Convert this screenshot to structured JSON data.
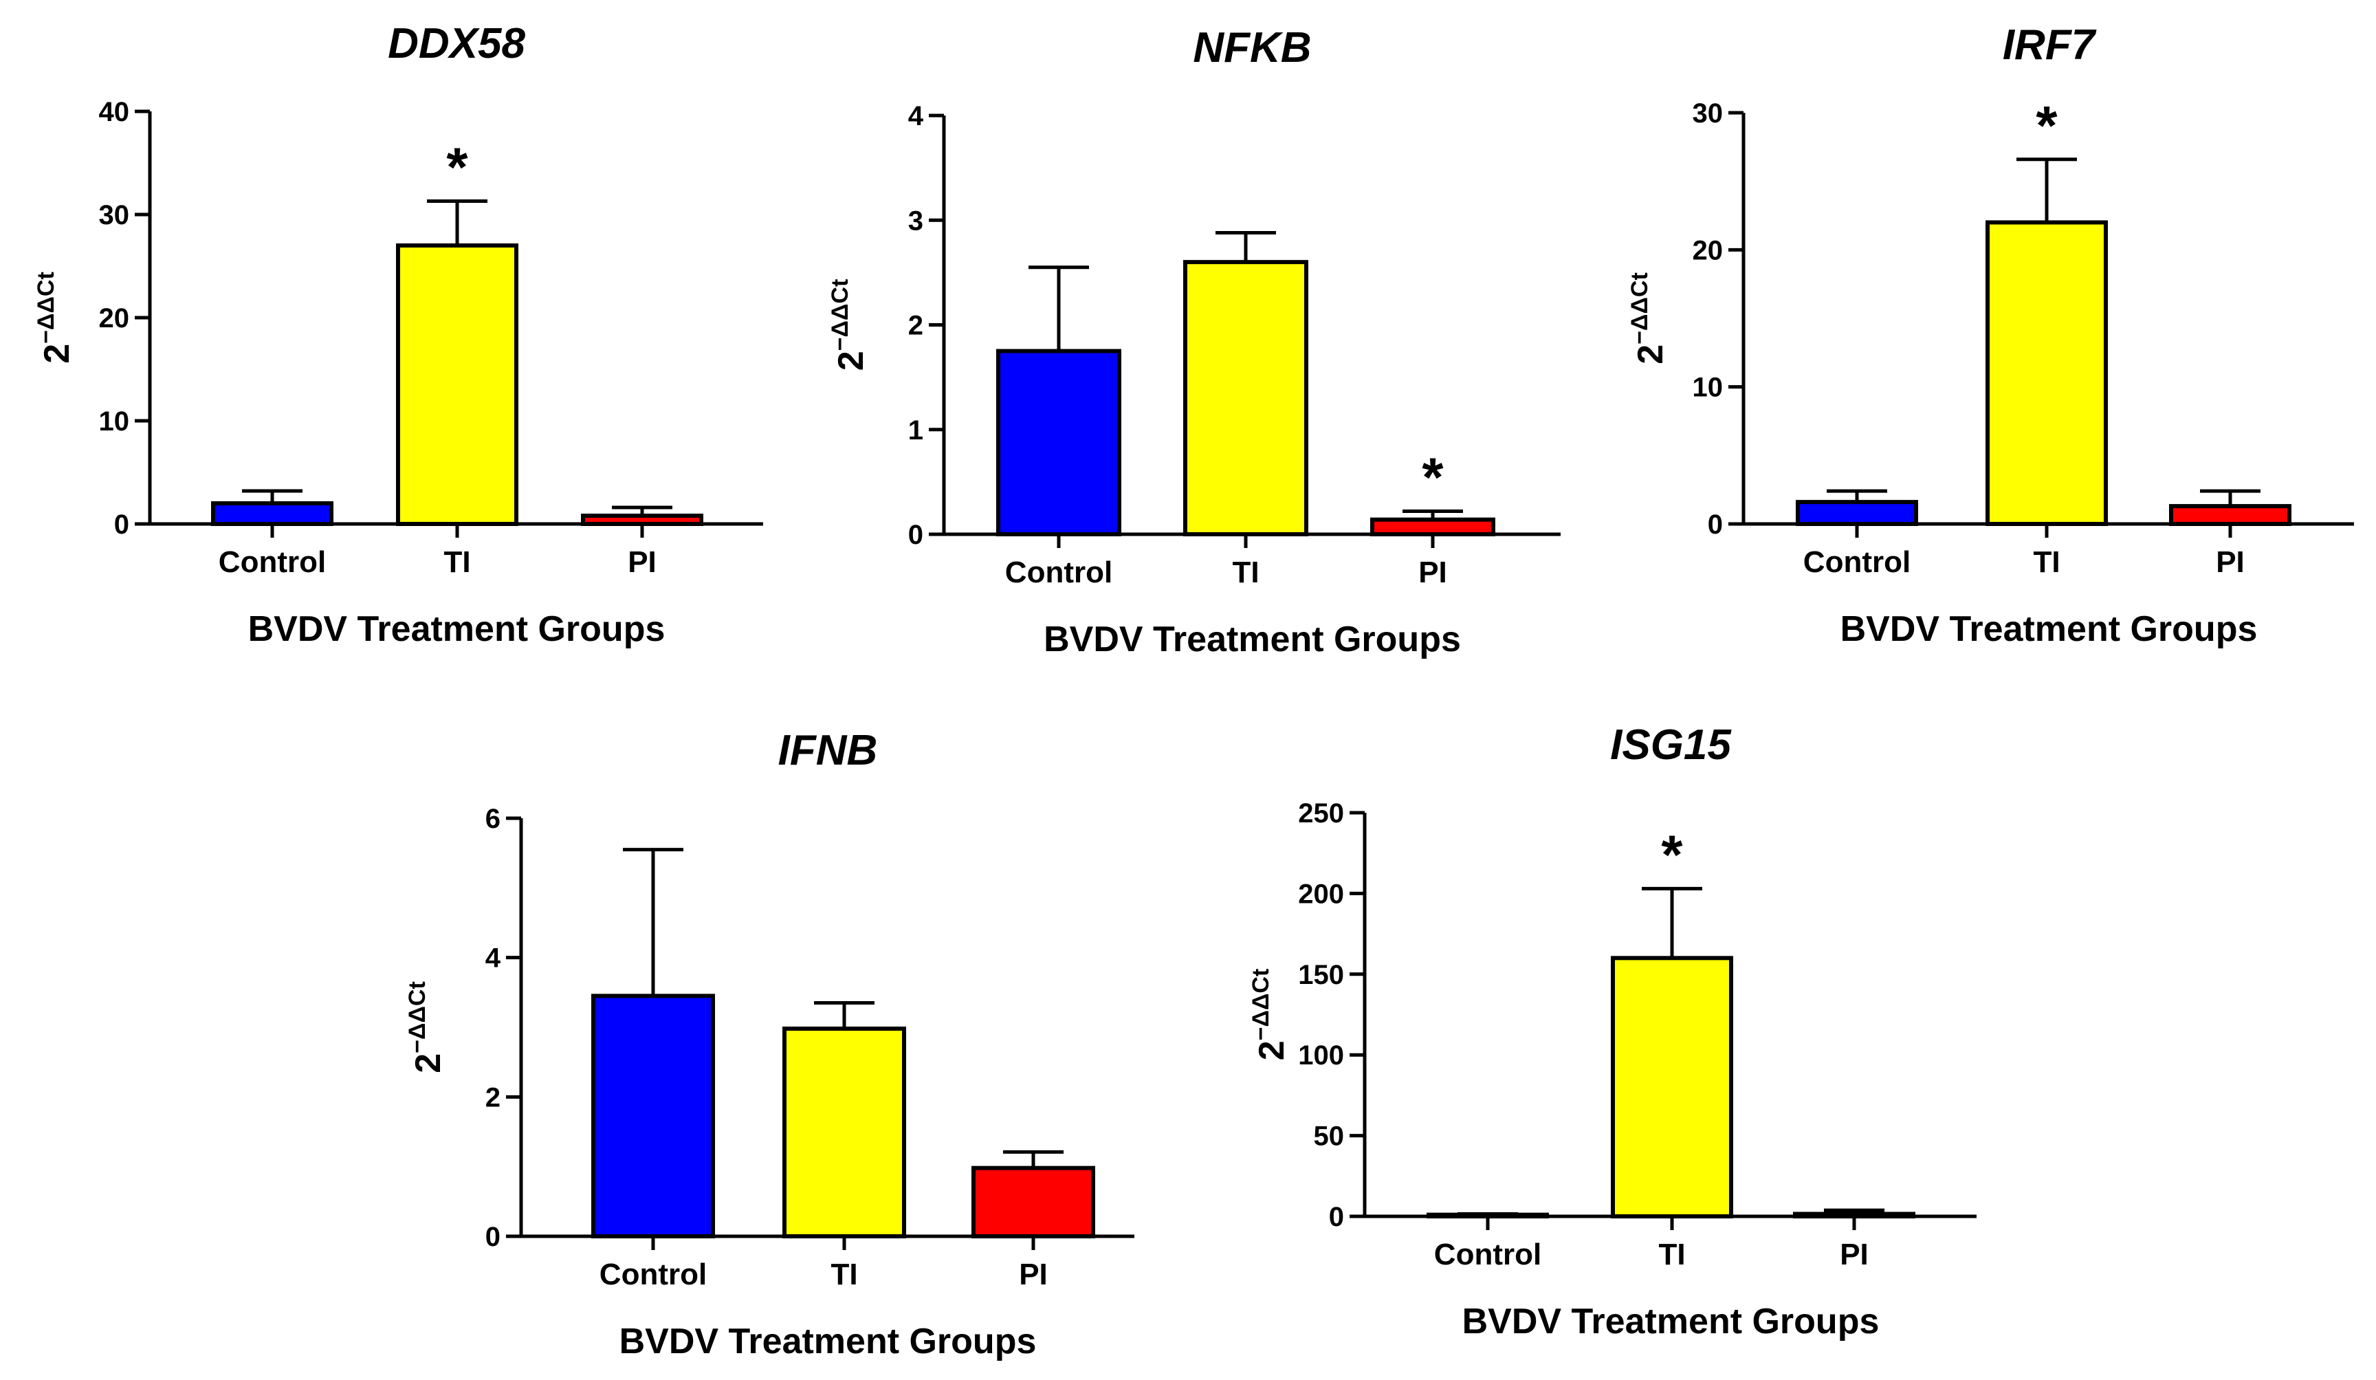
{
  "figure": {
    "colors": {
      "Control": "#0000ff",
      "TI": "#ffff00",
      "PI": "#ff0000",
      "axis": "#000000"
    }
  },
  "chart_data": [
    {
      "type": "bar",
      "title": "DDX58",
      "xlabel": "BVDV Treatment Groups",
      "ylabel_base": "2",
      "ylabel_sup": "−ΔΔCt",
      "categories": [
        "Control",
        "TI",
        "PI"
      ],
      "values": [
        2,
        27,
        0.8
      ],
      "errors": [
        1.2,
        4.3,
        0.8
      ],
      "significance": [
        "",
        "*",
        ""
      ],
      "ylim": [
        0,
        40
      ],
      "yticks": [
        0,
        10,
        20,
        30,
        40
      ],
      "ytick_labels": [
        "0",
        "10",
        "20",
        "30",
        "40"
      ]
    },
    {
      "type": "bar",
      "title": "NFKB",
      "xlabel": "BVDV Treatment Groups",
      "ylabel_base": "2",
      "ylabel_sup": "−ΔΔCt",
      "categories": [
        "Control",
        "TI",
        "PI"
      ],
      "values": [
        1.75,
        2.6,
        0.14
      ],
      "errors": [
        0.8,
        0.28,
        0.08
      ],
      "significance": [
        "",
        "",
        "*"
      ],
      "ylim": [
        0,
        4
      ],
      "yticks": [
        0,
        1,
        2,
        3,
        4
      ],
      "ytick_labels": [
        "0",
        "1",
        "2",
        "3",
        "4"
      ]
    },
    {
      "type": "bar",
      "title": "IRF7",
      "xlabel": "BVDV Treatment Groups",
      "ylabel_base": "2",
      "ylabel_sup": "−ΔΔCt",
      "categories": [
        "Control",
        "TI",
        "PI"
      ],
      "values": [
        1.6,
        22,
        1.3
      ],
      "errors": [
        0.8,
        4.6,
        1.1
      ],
      "significance": [
        "",
        "*",
        ""
      ],
      "ylim": [
        0,
        30
      ],
      "yticks": [
        0,
        10,
        20,
        30
      ],
      "ytick_labels": [
        "0",
        "10",
        "20",
        "30"
      ]
    },
    {
      "type": "bar",
      "title": "IFNB",
      "xlabel": "BVDV Treatment Groups",
      "ylabel_base": "2",
      "ylabel_sup": "−ΔΔCt",
      "categories": [
        "Control",
        "TI",
        "PI"
      ],
      "values": [
        3.45,
        2.98,
        0.98
      ],
      "errors": [
        2.1,
        0.37,
        0.23
      ],
      "significance": [
        "",
        "",
        ""
      ],
      "ylim": [
        0,
        6
      ],
      "yticks": [
        0,
        2,
        4,
        6
      ],
      "ytick_labels": [
        "0",
        "2",
        "4",
        "6"
      ]
    },
    {
      "type": "bar",
      "title": "ISG15",
      "xlabel": "BVDV Treatment Groups",
      "ylabel_base": "2",
      "ylabel_sup": "−ΔΔCt",
      "categories": [
        "Control",
        "TI",
        "PI"
      ],
      "values": [
        1,
        160,
        1.5
      ],
      "errors": [
        0.5,
        43,
        2.3
      ],
      "significance": [
        "",
        "*",
        ""
      ],
      "ylim": [
        0,
        250
      ],
      "yticks": [
        0,
        50,
        100,
        150,
        200,
        250
      ],
      "ytick_labels": [
        "0",
        "50",
        "100",
        "150",
        "200",
        "250"
      ]
    }
  ]
}
